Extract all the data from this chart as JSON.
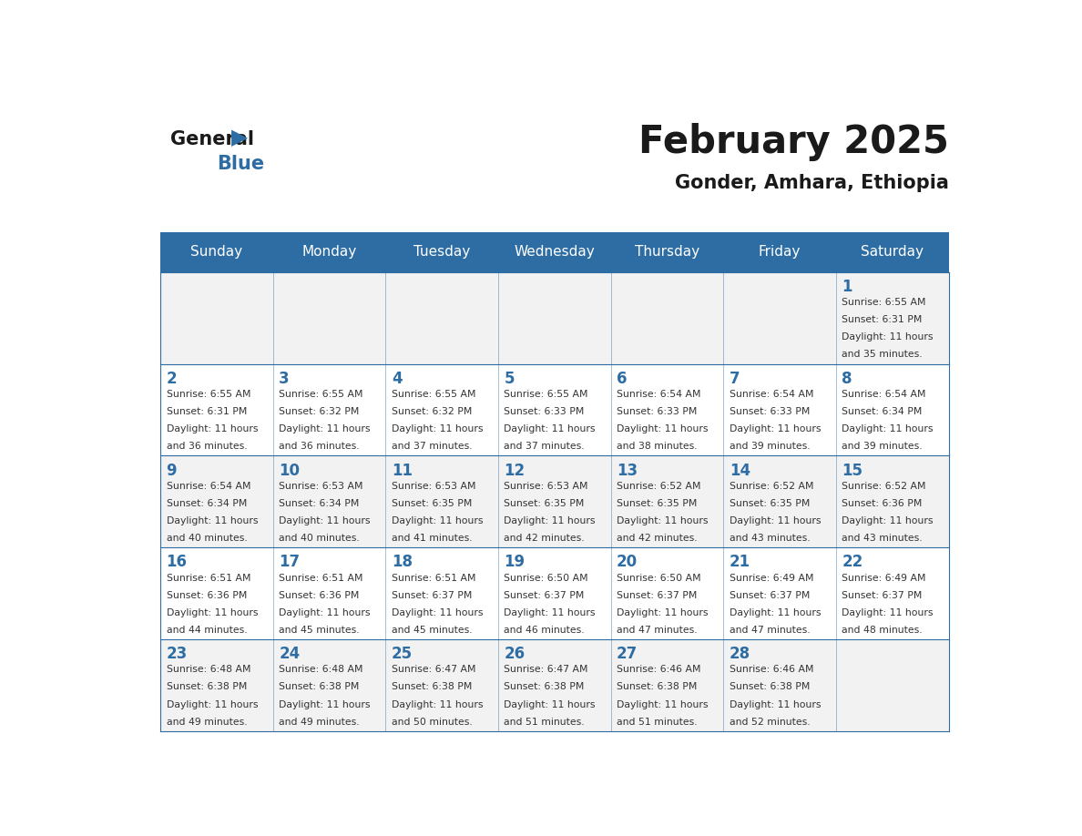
{
  "title": "February 2025",
  "subtitle": "Gonder, Amhara, Ethiopia",
  "days_of_week": [
    "Sunday",
    "Monday",
    "Tuesday",
    "Wednesday",
    "Thursday",
    "Friday",
    "Saturday"
  ],
  "header_bg": "#2E6DA4",
  "header_text_color": "#FFFFFF",
  "cell_bg_light": "#F2F2F2",
  "cell_bg_white": "#FFFFFF",
  "border_color": "#2E6DA4",
  "text_color": "#333333",
  "day_number_color": "#2E6DA4",
  "title_color": "#1a1a1a",
  "subtitle_color": "#1a1a1a",
  "logo_general_color": "#1a1a1a",
  "logo_blue_color": "#2E6DA4",
  "calendar": [
    [
      null,
      null,
      null,
      null,
      null,
      null,
      1
    ],
    [
      2,
      3,
      4,
      5,
      6,
      7,
      8
    ],
    [
      9,
      10,
      11,
      12,
      13,
      14,
      15
    ],
    [
      16,
      17,
      18,
      19,
      20,
      21,
      22
    ],
    [
      23,
      24,
      25,
      26,
      27,
      28,
      null
    ]
  ],
  "sun_data": {
    "1": {
      "rise": "6:55 AM",
      "set": "6:31 PM",
      "hours": 11,
      "minutes": 35
    },
    "2": {
      "rise": "6:55 AM",
      "set": "6:31 PM",
      "hours": 11,
      "minutes": 36
    },
    "3": {
      "rise": "6:55 AM",
      "set": "6:32 PM",
      "hours": 11,
      "minutes": 36
    },
    "4": {
      "rise": "6:55 AM",
      "set": "6:32 PM",
      "hours": 11,
      "minutes": 37
    },
    "5": {
      "rise": "6:55 AM",
      "set": "6:33 PM",
      "hours": 11,
      "minutes": 37
    },
    "6": {
      "rise": "6:54 AM",
      "set": "6:33 PM",
      "hours": 11,
      "minutes": 38
    },
    "7": {
      "rise": "6:54 AM",
      "set": "6:33 PM",
      "hours": 11,
      "minutes": 39
    },
    "8": {
      "rise": "6:54 AM",
      "set": "6:34 PM",
      "hours": 11,
      "minutes": 39
    },
    "9": {
      "rise": "6:54 AM",
      "set": "6:34 PM",
      "hours": 11,
      "minutes": 40
    },
    "10": {
      "rise": "6:53 AM",
      "set": "6:34 PM",
      "hours": 11,
      "minutes": 40
    },
    "11": {
      "rise": "6:53 AM",
      "set": "6:35 PM",
      "hours": 11,
      "minutes": 41
    },
    "12": {
      "rise": "6:53 AM",
      "set": "6:35 PM",
      "hours": 11,
      "minutes": 42
    },
    "13": {
      "rise": "6:52 AM",
      "set": "6:35 PM",
      "hours": 11,
      "minutes": 42
    },
    "14": {
      "rise": "6:52 AM",
      "set": "6:35 PM",
      "hours": 11,
      "minutes": 43
    },
    "15": {
      "rise": "6:52 AM",
      "set": "6:36 PM",
      "hours": 11,
      "minutes": 43
    },
    "16": {
      "rise": "6:51 AM",
      "set": "6:36 PM",
      "hours": 11,
      "minutes": 44
    },
    "17": {
      "rise": "6:51 AM",
      "set": "6:36 PM",
      "hours": 11,
      "minutes": 45
    },
    "18": {
      "rise": "6:51 AM",
      "set": "6:37 PM",
      "hours": 11,
      "minutes": 45
    },
    "19": {
      "rise": "6:50 AM",
      "set": "6:37 PM",
      "hours": 11,
      "minutes": 46
    },
    "20": {
      "rise": "6:50 AM",
      "set": "6:37 PM",
      "hours": 11,
      "minutes": 47
    },
    "21": {
      "rise": "6:49 AM",
      "set": "6:37 PM",
      "hours": 11,
      "minutes": 47
    },
    "22": {
      "rise": "6:49 AM",
      "set": "6:37 PM",
      "hours": 11,
      "minutes": 48
    },
    "23": {
      "rise": "6:48 AM",
      "set": "6:38 PM",
      "hours": 11,
      "minutes": 49
    },
    "24": {
      "rise": "6:48 AM",
      "set": "6:38 PM",
      "hours": 11,
      "minutes": 49
    },
    "25": {
      "rise": "6:47 AM",
      "set": "6:38 PM",
      "hours": 11,
      "minutes": 50
    },
    "26": {
      "rise": "6:47 AM",
      "set": "6:38 PM",
      "hours": 11,
      "minutes": 51
    },
    "27": {
      "rise": "6:46 AM",
      "set": "6:38 PM",
      "hours": 11,
      "minutes": 51
    },
    "28": {
      "rise": "6:46 AM",
      "set": "6:38 PM",
      "hours": 11,
      "minutes": 52
    }
  }
}
